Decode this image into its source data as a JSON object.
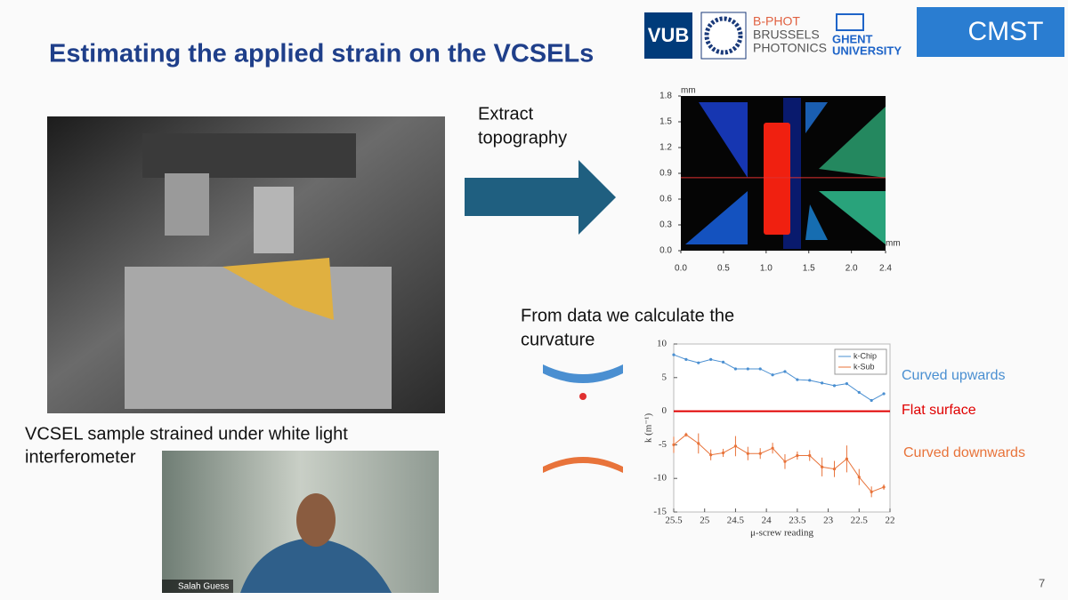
{
  "slide": {
    "title": "Estimating the applied strain on the VCSELs",
    "page_number": "7",
    "photo_caption": [
      "VCSEL sample strained under white light",
      "interferometer"
    ],
    "arrow_label": [
      "Extract",
      "topography"
    ],
    "curvature_text": [
      "From data we calculate the",
      "curvature"
    ],
    "annotations": {
      "up": "Curved upwards",
      "flat": "Flat surface",
      "down": "Curved downwards"
    }
  },
  "logos": {
    "vub": "VUB",
    "bphot": [
      "B-PHOT",
      "BRUSSELS",
      "PHOTONICS"
    ],
    "ghent": [
      "GHENT",
      "UNIVERSITY"
    ],
    "cmst": "CMST"
  },
  "topography": {
    "x_unit": "mm",
    "y_unit": "mm",
    "xlim": [
      0,
      2.4
    ],
    "ylim": [
      0,
      1.8
    ],
    "xticks": [
      {
        "value": 0,
        "label": "0.0"
      },
      0.5,
      {
        "value": 1,
        "label": "1.0"
      },
      1.5,
      {
        "value": 2,
        "label": "2.0"
      },
      2.4
    ],
    "yticks": [
      {
        "value": 0,
        "label": "0.0"
      },
      0.3,
      0.6,
      0.9,
      1.2,
      1.5,
      1.8
    ],
    "profile_line": 0.85
  },
  "curvature_chart": {
    "type": "line",
    "x_label": "μ-screw reading",
    "y_label": "k (m⁻¹)",
    "xlim": [
      25.5,
      22
    ],
    "ylim": [
      -15,
      10
    ],
    "xticks": [
      25.5,
      25,
      24.5,
      24,
      23.5,
      23,
      22.5,
      22
    ],
    "yticks": [
      -15,
      -10,
      -5,
      0,
      5,
      10
    ],
    "reference_line": 0,
    "x": [
      25.5,
      25.3,
      25.1,
      24.9,
      24.7,
      24.5,
      24.3,
      24.1,
      23.9,
      23.7,
      23.5,
      23.3,
      23.1,
      22.9,
      22.7,
      22.5,
      22.3,
      22.1
    ],
    "series": [
      {
        "name": "k-Chip",
        "color": "#4a8fd1",
        "values": [
          8.4,
          7.7,
          7.2,
          7.7,
          7.3,
          6.3,
          6.3,
          6.3,
          5.4,
          5.9,
          4.7,
          4.6,
          4.2,
          3.8,
          4.1,
          2.8,
          1.6,
          2.6
        ]
      },
      {
        "name": "k-Sub",
        "color": "#e8733a",
        "values": [
          -5.0,
          -3.5,
          -4.8,
          -6.5,
          -6.2,
          -5.2,
          -6.3,
          -6.3,
          -5.5,
          -7.5,
          -6.6,
          -6.6,
          -8.3,
          -8.6,
          -7.1,
          -9.8,
          -12.0,
          -11.3
        ],
        "errors": [
          1.2,
          0.3,
          1.5,
          0.8,
          0.6,
          1.5,
          1.0,
          0.8,
          0.8,
          1.1,
          0.6,
          0.8,
          1.4,
          1.2,
          2.0,
          1.2,
          0.8,
          0.4
        ]
      }
    ]
  },
  "video": {
    "participant": "Salah Guess"
  }
}
